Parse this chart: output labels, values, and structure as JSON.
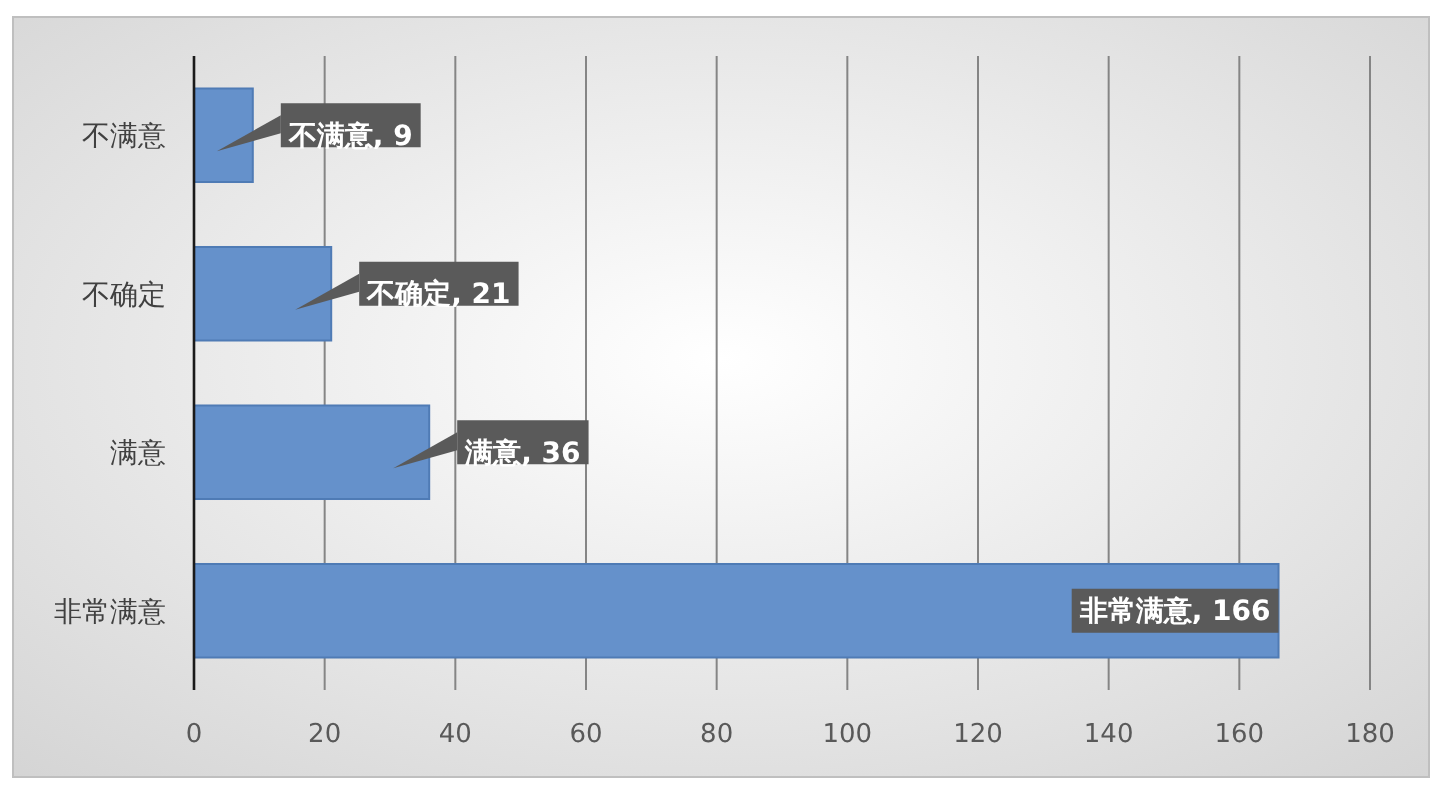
{
  "chart_data": {
    "type": "bar",
    "orientation": "horizontal",
    "categories": [
      "不满意",
      "不确定",
      "满意",
      "非常满意"
    ],
    "values": [
      9,
      21,
      36,
      166
    ],
    "value_labels": [
      "不满意, 9",
      "不确定, 21",
      "满意, 36",
      "非常满意, 166"
    ],
    "color": "#6591cb",
    "xlim": [
      0,
      180
    ],
    "xticks": [
      0,
      20,
      40,
      60,
      80,
      100,
      120,
      140,
      160,
      180
    ],
    "grid": "x"
  }
}
